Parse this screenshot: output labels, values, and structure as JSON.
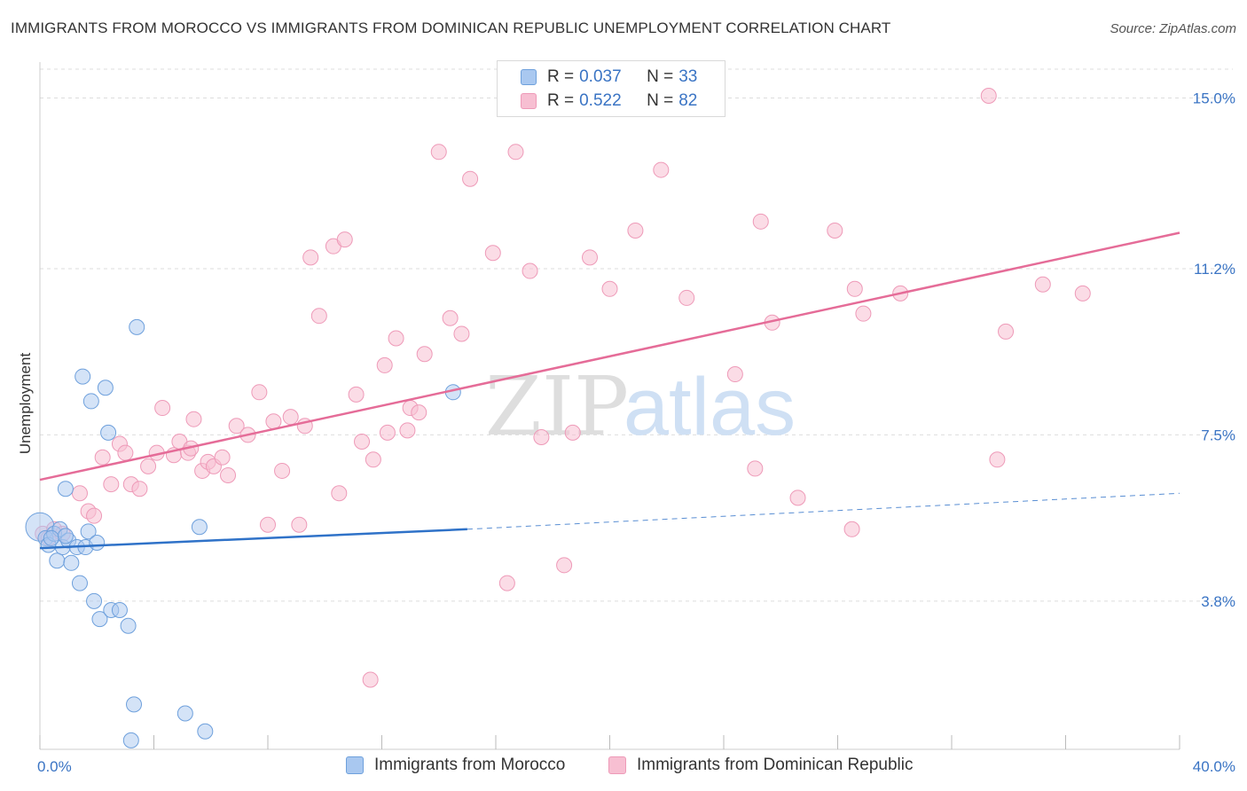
{
  "title": "IMMIGRANTS FROM MOROCCO VS IMMIGRANTS FROM DOMINICAN REPUBLIC UNEMPLOYMENT CORRELATION CHART",
  "source": "Source: ZipAtlas.com",
  "watermark": {
    "zip": "ZIP",
    "atlas": "atlas"
  },
  "colors": {
    "blue_fill": "#a9c8f0",
    "blue_stroke": "#6ea0dc",
    "blue_line": "#2f72c8",
    "pink_fill": "#f7bfd2",
    "pink_stroke": "#ee9ab8",
    "pink_line": "#e56c98",
    "grid": "#dddddd",
    "axis_text": "#3a74c4"
  },
  "legend": {
    "rows": [
      {
        "r_label": "R = ",
        "r_value": "0.037",
        "n_label": "N = ",
        "n_value": "33"
      },
      {
        "r_label": "R = ",
        "r_value": "0.522",
        "n_label": "N = ",
        "n_value": "82"
      }
    ]
  },
  "bottom_legend": [
    {
      "label": "Immigrants from Morocco"
    },
    {
      "label": "Immigrants from Dominican Republic"
    }
  ],
  "chart_data": {
    "type": "scatter",
    "title": "IMMIGRANTS FROM MOROCCO VS IMMIGRANTS FROM DOMINICAN REPUBLIC UNEMPLOYMENT CORRELATION CHART",
    "xlabel": "",
    "ylabel": "Unemployment",
    "xlim": [
      0,
      40
    ],
    "ylim": [
      0.5,
      15.8
    ],
    "x_tick_labels": [
      {
        "value": 0,
        "label": "0.0%"
      },
      {
        "value": 40,
        "label": "40.0%"
      }
    ],
    "y_ticks": [
      {
        "value": 3.8,
        "label": "3.8%"
      },
      {
        "value": 7.5,
        "label": "7.5%"
      },
      {
        "value": 11.2,
        "label": "11.2%"
      },
      {
        "value": 15.0,
        "label": "15.0%"
      }
    ],
    "grid": true,
    "series": [
      {
        "name": "Immigrants from Morocco",
        "color": "blue",
        "r": 0.037,
        "n": 33,
        "trend_solid": [
          [
            0,
            4.98
          ],
          [
            15,
            5.4
          ]
        ],
        "trend_dashed": [
          [
            15,
            5.4
          ],
          [
            40,
            6.2
          ]
        ],
        "points": [
          [
            0.0,
            5.45
          ],
          [
            0.2,
            5.2
          ],
          [
            0.3,
            5.05
          ],
          [
            0.5,
            5.3
          ],
          [
            0.6,
            4.7
          ],
          [
            0.7,
            5.4
          ],
          [
            0.8,
            5.0
          ],
          [
            0.9,
            6.3
          ],
          [
            1.0,
            5.15
          ],
          [
            1.1,
            4.65
          ],
          [
            1.3,
            5.0
          ],
          [
            1.4,
            4.2
          ],
          [
            1.5,
            8.8
          ],
          [
            1.6,
            5.0
          ],
          [
            1.7,
            5.35
          ],
          [
            1.8,
            8.25
          ],
          [
            1.9,
            3.8
          ],
          [
            2.0,
            5.1
          ],
          [
            2.1,
            3.4
          ],
          [
            2.3,
            8.55
          ],
          [
            2.4,
            7.55
          ],
          [
            2.5,
            3.6
          ],
          [
            2.8,
            3.6
          ],
          [
            3.1,
            3.25
          ],
          [
            3.2,
            0.7
          ],
          [
            3.3,
            1.5
          ],
          [
            3.4,
            9.9
          ],
          [
            5.1,
            1.3
          ],
          [
            5.6,
            5.45
          ],
          [
            5.8,
            0.9
          ],
          [
            14.5,
            8.45
          ],
          [
            0.4,
            5.2
          ],
          [
            0.9,
            5.25
          ]
        ]
      },
      {
        "name": "Immigrants from Dominican Republic",
        "color": "pink",
        "r": 0.522,
        "n": 82,
        "trend_solid": [
          [
            0,
            6.5
          ],
          [
            40,
            12.0
          ]
        ],
        "points": [
          [
            0.1,
            5.3
          ],
          [
            0.3,
            5.2
          ],
          [
            0.5,
            5.4
          ],
          [
            0.8,
            5.3
          ],
          [
            1.4,
            6.2
          ],
          [
            1.7,
            5.8
          ],
          [
            1.9,
            5.7
          ],
          [
            2.2,
            7.0
          ],
          [
            2.5,
            6.4
          ],
          [
            2.8,
            7.3
          ],
          [
            3.0,
            7.1
          ],
          [
            3.2,
            6.4
          ],
          [
            3.5,
            6.3
          ],
          [
            3.8,
            6.8
          ],
          [
            4.1,
            7.1
          ],
          [
            4.3,
            8.1
          ],
          [
            4.7,
            7.05
          ],
          [
            4.9,
            7.35
          ],
          [
            5.2,
            7.1
          ],
          [
            5.3,
            7.2
          ],
          [
            5.4,
            7.85
          ],
          [
            5.7,
            6.7
          ],
          [
            5.9,
            6.9
          ],
          [
            6.1,
            6.8
          ],
          [
            6.4,
            7.0
          ],
          [
            6.6,
            6.6
          ],
          [
            6.9,
            7.7
          ],
          [
            7.3,
            7.5
          ],
          [
            7.7,
            8.45
          ],
          [
            8.0,
            5.5
          ],
          [
            8.2,
            7.8
          ],
          [
            8.5,
            6.7
          ],
          [
            8.8,
            7.9
          ],
          [
            9.1,
            5.5
          ],
          [
            9.3,
            7.7
          ],
          [
            9.5,
            11.45
          ],
          [
            9.8,
            10.15
          ],
          [
            10.3,
            11.7
          ],
          [
            10.5,
            6.2
          ],
          [
            10.7,
            11.85
          ],
          [
            11.1,
            8.4
          ],
          [
            11.3,
            7.35
          ],
          [
            11.6,
            2.05
          ],
          [
            11.7,
            6.95
          ],
          [
            12.1,
            9.05
          ],
          [
            12.2,
            7.55
          ],
          [
            12.5,
            9.65
          ],
          [
            12.9,
            7.6
          ],
          [
            13.0,
            8.1
          ],
          [
            13.3,
            8.0
          ],
          [
            13.5,
            9.3
          ],
          [
            14.0,
            13.8
          ],
          [
            14.4,
            10.1
          ],
          [
            14.8,
            9.75
          ],
          [
            15.1,
            13.2
          ],
          [
            15.9,
            11.55
          ],
          [
            16.4,
            4.2
          ],
          [
            16.7,
            13.8
          ],
          [
            17.2,
            11.15
          ],
          [
            17.6,
            7.45
          ],
          [
            18.4,
            4.6
          ],
          [
            18.7,
            7.55
          ],
          [
            19.3,
            11.45
          ],
          [
            20.0,
            10.75
          ],
          [
            20.9,
            12.05
          ],
          [
            21.8,
            13.4
          ],
          [
            22.7,
            10.55
          ],
          [
            24.4,
            8.85
          ],
          [
            25.1,
            6.75
          ],
          [
            25.3,
            12.25
          ],
          [
            25.7,
            10.0
          ],
          [
            26.6,
            6.1
          ],
          [
            27.9,
            12.05
          ],
          [
            28.5,
            5.4
          ],
          [
            28.6,
            10.75
          ],
          [
            28.9,
            10.2
          ],
          [
            30.2,
            10.65
          ],
          [
            33.3,
            15.05
          ],
          [
            33.6,
            6.95
          ],
          [
            33.9,
            9.8
          ],
          [
            35.2,
            10.85
          ],
          [
            36.6,
            10.65
          ]
        ]
      }
    ]
  }
}
